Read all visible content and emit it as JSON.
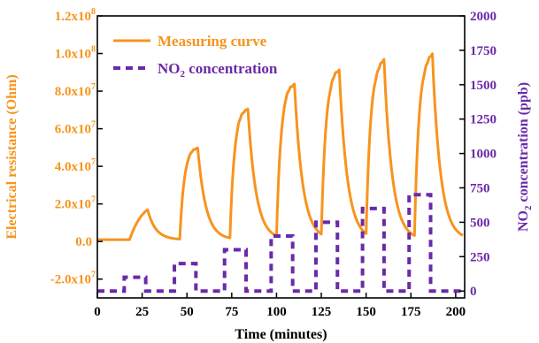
{
  "chart_data": {
    "type": "line",
    "xlabel": "Time (minutes)",
    "ylabel_left": "Electrical resistance (Ohm)",
    "ylabel_right_prefix": "NO",
    "ylabel_right_sub": "2",
    "ylabel_right_suffix": " concentration (ppb)",
    "xlim": [
      0,
      205
    ],
    "ylim_left": [
      -30000000,
      120000000
    ],
    "ylim_right": [
      -50,
      2000
    ],
    "x_ticks": [
      "0",
      "25",
      "50",
      "75",
      "100",
      "125",
      "150",
      "175",
      "200"
    ],
    "x_tick_values": [
      0,
      25,
      50,
      75,
      100,
      125,
      150,
      175,
      200
    ],
    "y_left_ticks": [
      "-2.0x10",
      "0.0",
      "2.0x10",
      "4.0x10",
      "6.0x10",
      "8.0x10",
      "1.0x10",
      "1.2x10"
    ],
    "y_left_tick_exp": [
      "7",
      "",
      "7",
      "7",
      "7",
      "7",
      "8",
      "8"
    ],
    "y_left_tick_values": [
      -20000000,
      0,
      20000000,
      40000000,
      60000000,
      80000000,
      100000000,
      120000000
    ],
    "y_right_ticks": [
      "0",
      "250",
      "500",
      "750",
      "1000",
      "1250",
      "1500",
      "1750",
      "2000"
    ],
    "y_right_tick_values": [
      0,
      250,
      500,
      750,
      1000,
      1250,
      1500,
      1750,
      2000
    ],
    "legend_position": "top-left",
    "colors": {
      "resistance": "#f7941d",
      "no2": "#6a2aa8"
    },
    "series": [
      {
        "name": "Measuring curve",
        "axis": "left",
        "style": "solid",
        "pulses": [
          {
            "on": 18,
            "off": 28,
            "peak": 17000000
          },
          {
            "on": 46,
            "off": 56,
            "peak": 50000000
          },
          {
            "on": 74,
            "off": 84,
            "peak": 71000000
          },
          {
            "on": 100,
            "off": 110,
            "peak": 84000000
          },
          {
            "on": 125,
            "off": 135,
            "peak": 91000000
          },
          {
            "on": 150,
            "off": 160,
            "peak": 96000000
          },
          {
            "on": 177,
            "off": 187,
            "peak": 99000000
          }
        ],
        "baseline": 1000000,
        "start_x": 0,
        "end_x": 204
      },
      {
        "name": "NO2 concentration",
        "legend_prefix": "NO",
        "legend_sub": "2",
        "legend_suffix": " concentration",
        "axis": "right",
        "style": "dashed",
        "steps": [
          {
            "start": 15,
            "end": 27,
            "value": 100
          },
          {
            "start": 43,
            "end": 55,
            "value": 200
          },
          {
            "start": 71,
            "end": 83,
            "value": 300
          },
          {
            "start": 97,
            "end": 109,
            "value": 400
          },
          {
            "start": 122,
            "end": 134,
            "value": 500
          },
          {
            "start": 148,
            "end": 160,
            "value": 600
          },
          {
            "start": 174,
            "end": 186,
            "value": 700
          }
        ],
        "baseline": 0,
        "start_x": 0,
        "end_x": 204
      }
    ]
  }
}
